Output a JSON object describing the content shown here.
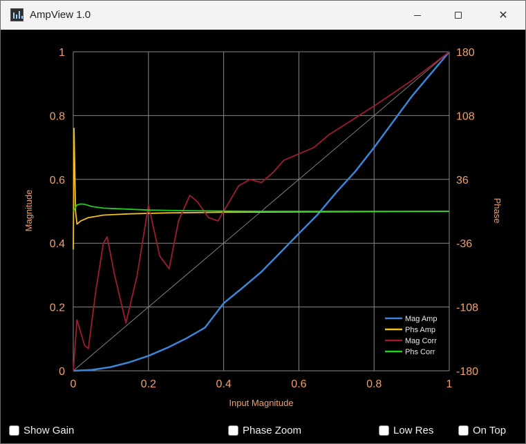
{
  "window": {
    "title": "AmpView 1.0",
    "icon": "app-icon",
    "controls": {
      "minimize": "minimize-icon",
      "maximize": "maximize-icon",
      "close": "✕"
    }
  },
  "chart_data": {
    "type": "line",
    "xlabel": "Input Magnitude",
    "ylabel": "Magnitude",
    "y2label": "Phase",
    "xlim": [
      0,
      1
    ],
    "ylim": [
      0,
      1
    ],
    "y2lim": [
      -180,
      180
    ],
    "x_ticks": [
      "0",
      "0.2",
      "0.4",
      "0.6",
      "0.8",
      "1"
    ],
    "y_ticks": [
      "0",
      "0.2",
      "0.4",
      "0.6",
      "0.8",
      "1"
    ],
    "y2_ticks": [
      "-180",
      "-108",
      "-36",
      "36",
      "108",
      "180"
    ],
    "grid": true,
    "legend_position": "bottom-right",
    "reference_line": {
      "x": [
        0,
        1
      ],
      "y": [
        0,
        1
      ],
      "color": "#808080"
    },
    "series": [
      {
        "name": "Mag Amp",
        "color": "#3a86d8",
        "x": [
          0,
          0.05,
          0.1,
          0.15,
          0.2,
          0.25,
          0.3,
          0.35,
          0.4,
          0.45,
          0.5,
          0.55,
          0.6,
          0.65,
          0.7,
          0.75,
          0.8,
          0.85,
          0.9,
          0.95,
          1.0
        ],
        "y": [
          0,
          0.003,
          0.012,
          0.027,
          0.047,
          0.072,
          0.101,
          0.135,
          0.212,
          0.26,
          0.31,
          0.37,
          0.43,
          0.49,
          0.56,
          0.625,
          0.7,
          0.78,
          0.86,
          0.93,
          1.0
        ]
      },
      {
        "name": "Phs Amp",
        "color": "#f0c020",
        "x": [
          0,
          0.002,
          0.006,
          0.01,
          0.02,
          0.04,
          0.08,
          0.15,
          0.25,
          0.4,
          0.6,
          0.8,
          1.0
        ],
        "y": [
          0.38,
          0.76,
          0.5,
          0.46,
          0.47,
          0.48,
          0.488,
          0.492,
          0.495,
          0.497,
          0.498,
          0.499,
          0.5
        ]
      },
      {
        "name": "Mag Corr",
        "color": "#a01c30",
        "x": [
          0,
          0.01,
          0.02,
          0.03,
          0.04,
          0.06,
          0.08,
          0.09,
          0.11,
          0.14,
          0.17,
          0.2,
          0.23,
          0.255,
          0.28,
          0.31,
          0.33,
          0.36,
          0.385,
          0.41,
          0.44,
          0.47,
          0.5,
          0.53,
          0.56,
          0.6,
          0.64,
          0.68,
          0.72,
          0.76,
          0.8,
          0.85,
          0.9,
          0.95,
          1.0
        ],
        "y": [
          0,
          0.16,
          0.12,
          0.08,
          0.07,
          0.25,
          0.4,
          0.42,
          0.3,
          0.15,
          0.3,
          0.52,
          0.36,
          0.32,
          0.47,
          0.55,
          0.53,
          0.48,
          0.47,
          0.52,
          0.58,
          0.6,
          0.59,
          0.62,
          0.66,
          0.68,
          0.7,
          0.74,
          0.77,
          0.8,
          0.83,
          0.87,
          0.91,
          0.955,
          1.0
        ]
      },
      {
        "name": "Phs Corr",
        "color": "#20d020",
        "x": [
          0,
          0.01,
          0.02,
          0.03,
          0.05,
          0.08,
          0.12,
          0.2,
          0.3,
          0.5,
          0.7,
          1.0
        ],
        "y": [
          0.5,
          0.52,
          0.523,
          0.522,
          0.515,
          0.51,
          0.508,
          0.504,
          0.502,
          0.5,
          0.5,
          0.5
        ]
      }
    ]
  },
  "options": {
    "show_gain": "Show Gain",
    "phase_zoom": "Phase Zoom",
    "low_res": "Low Res",
    "on_top": "On Top"
  }
}
